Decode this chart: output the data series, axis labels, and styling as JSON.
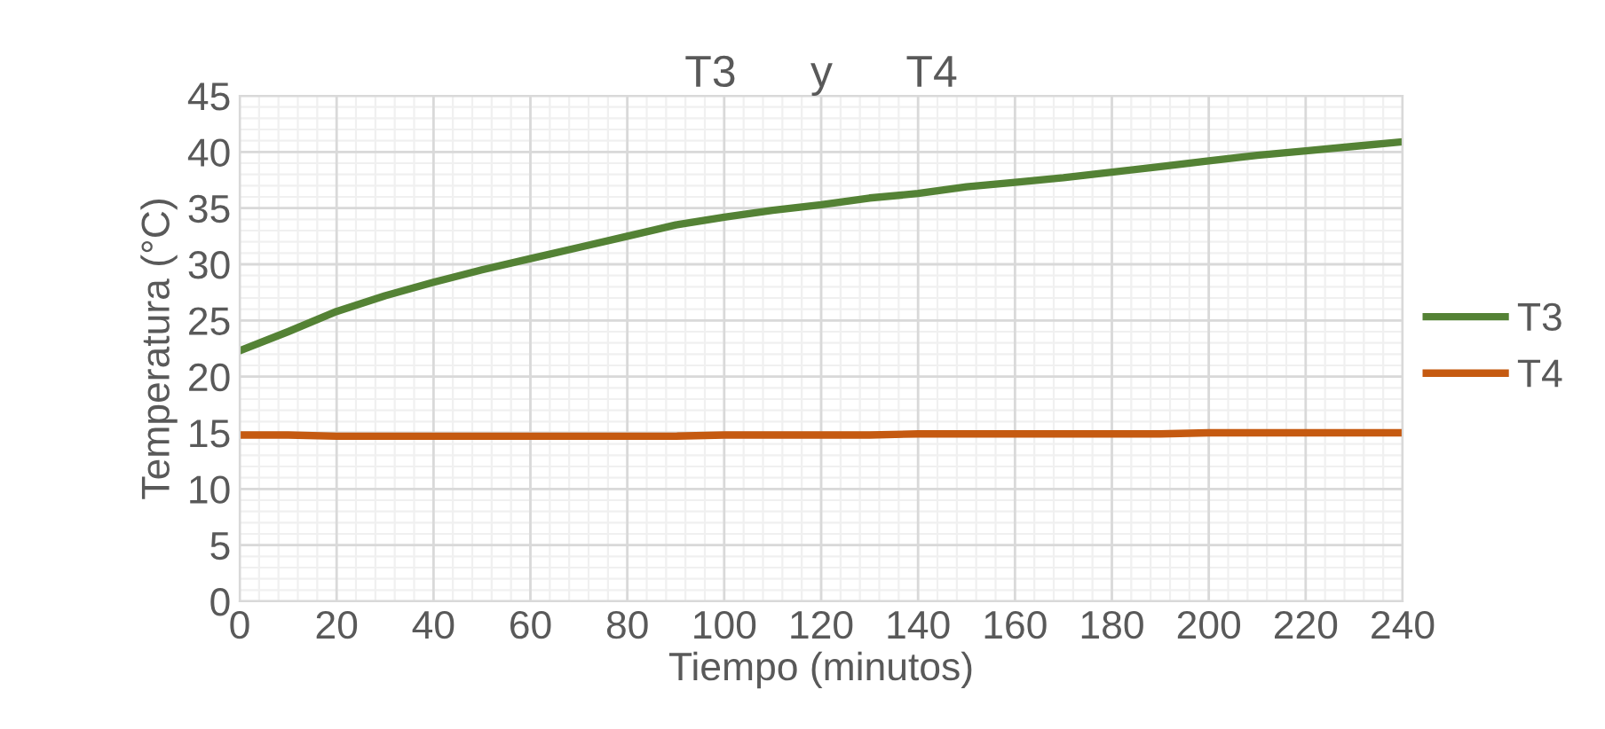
{
  "chart_data": {
    "type": "line",
    "title": "T3      y      T4",
    "xlabel": "Tiempo (minutos)",
    "ylabel": "Temperatura (°C)",
    "x": [
      0,
      10,
      20,
      30,
      40,
      50,
      60,
      70,
      80,
      90,
      100,
      110,
      120,
      130,
      140,
      150,
      160,
      170,
      180,
      190,
      200,
      210,
      220,
      230,
      240
    ],
    "series": [
      {
        "name": "T3",
        "color": "#548235",
        "values": [
          22.3,
          24.0,
          25.8,
          27.2,
          28.4,
          29.5,
          30.5,
          31.5,
          32.5,
          33.5,
          34.2,
          34.8,
          35.3,
          35.9,
          36.3,
          36.9,
          37.3,
          37.7,
          38.2,
          38.7,
          39.2,
          39.7,
          40.1,
          40.5,
          40.9
        ]
      },
      {
        "name": "T4",
        "color": "#c55a11",
        "values": [
          14.8,
          14.8,
          14.7,
          14.7,
          14.7,
          14.7,
          14.7,
          14.7,
          14.7,
          14.7,
          14.8,
          14.8,
          14.8,
          14.8,
          14.9,
          14.9,
          14.9,
          14.9,
          14.9,
          14.9,
          15.0,
          15.0,
          15.0,
          15.0,
          15.0
        ]
      }
    ],
    "xlim": [
      0,
      240
    ],
    "xticks": [
      0,
      20,
      40,
      60,
      80,
      100,
      120,
      140,
      160,
      180,
      200,
      220,
      240
    ],
    "ylim": [
      0,
      45
    ],
    "yticks": [
      0,
      5,
      10,
      15,
      20,
      25,
      30,
      35,
      40,
      45
    ],
    "grid": true,
    "legend": "right",
    "marker": "none",
    "line_style": "solid"
  }
}
